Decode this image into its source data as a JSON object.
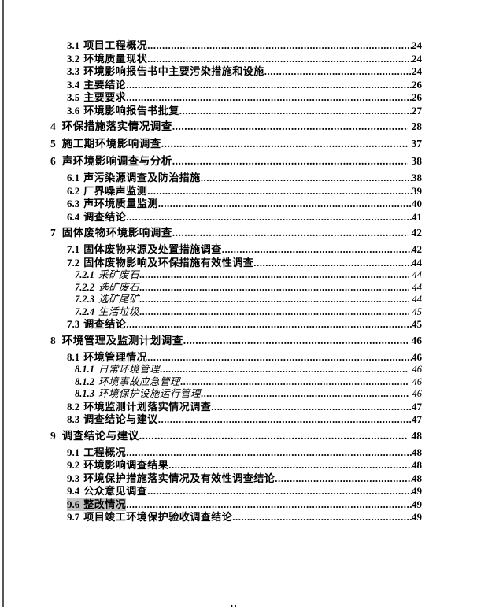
{
  "page": {
    "background_color": "#ffffff",
    "left_border_color": "#57575b",
    "highlight_color": "#c3c3c3",
    "footer_page_number": "II"
  },
  "toc": {
    "entries": [
      {
        "level": 2,
        "num": "3.1",
        "title": "项目工程概况",
        "page": "24"
      },
      {
        "level": 2,
        "num": "3.2",
        "title": "环境质量现状",
        "page": "24"
      },
      {
        "level": 2,
        "num": "3.3",
        "title": "环境影响报告书中主要污染措施和设施",
        "page": "24"
      },
      {
        "level": 2,
        "num": "3.4",
        "title": "主要结论",
        "page": "26"
      },
      {
        "level": 2,
        "num": "3.5",
        "title": "主要要求",
        "page": "26"
      },
      {
        "level": 2,
        "num": "3.6",
        "title": "环境影响报告书批复",
        "page": "27"
      },
      {
        "level": 1,
        "num": "4",
        "title": "环保措施落实情况调查",
        "page": "28"
      },
      {
        "level": 1,
        "num": "5",
        "title": "施工期环境影响调查",
        "page": "37"
      },
      {
        "level": 1,
        "num": "6",
        "title": "声环境影响调查与分析",
        "page": "38"
      },
      {
        "level": 2,
        "num": "6.1",
        "title": "声污染源调查及防治措施",
        "page": "38"
      },
      {
        "level": 2,
        "num": "6.2",
        "title": "厂界噪声监测",
        "page": "39"
      },
      {
        "level": 2,
        "num": "6.3",
        "title": "声环境质量监测",
        "page": "40"
      },
      {
        "level": 2,
        "num": "6.4",
        "title": "调查结论",
        "page": "41"
      },
      {
        "level": 1,
        "num": "7",
        "title": "固体废物环境影响调查",
        "page": "42"
      },
      {
        "level": 2,
        "num": "7.1",
        "title": "固体废物来源及处置措施调查",
        "page": "42"
      },
      {
        "level": 2,
        "num": "7.2",
        "title": "固体废物影响及环保措施有效性调查",
        "page": "44"
      },
      {
        "level": 3,
        "num": "7.2.1",
        "title": "采矿废石",
        "page": "44"
      },
      {
        "level": 3,
        "num": "7.2.2",
        "title": "选矿废石",
        "page": "44"
      },
      {
        "level": 3,
        "num": "7.2.3",
        "title": "选矿尾矿",
        "page": "44"
      },
      {
        "level": 3,
        "num": "7.2.4",
        "title": "生活垃圾",
        "page": "45"
      },
      {
        "level": 2,
        "num": "7.3",
        "title": "调查结论",
        "page": "45"
      },
      {
        "level": 1,
        "num": "8",
        "title": "环境管理及监测计划调查",
        "page": "46"
      },
      {
        "level": 2,
        "num": "8.1",
        "title": "环境管理情况",
        "page": "46"
      },
      {
        "level": 3,
        "num": "8.1.1",
        "title": "日常环境管理",
        "page": "46"
      },
      {
        "level": 3,
        "num": "8.1.2",
        "title": "环境事故应急管理",
        "page": "46"
      },
      {
        "level": 3,
        "num": "8.1.3",
        "title": "环境保护设施运行管理",
        "page": "46"
      },
      {
        "level": 2,
        "num": "8.2",
        "title": "环境监测计划落实情况调查",
        "page": "47"
      },
      {
        "level": 2,
        "num": "8.3",
        "title": "调查结论与建议",
        "page": "47"
      },
      {
        "level": 1,
        "num": "9",
        "title": "调查结论与建议",
        "page": "48"
      },
      {
        "level": 2,
        "num": "9.1",
        "title": "工程概况",
        "page": "48"
      },
      {
        "level": 2,
        "num": "9.2",
        "title": "环境影响调查结果",
        "page": "48"
      },
      {
        "level": 2,
        "num": "9.3",
        "title": "环境保护措施落实情况及有效性调查结论",
        "page": "48"
      },
      {
        "level": 2,
        "num": "9.4",
        "title": "公众意见调查",
        "page": "49"
      },
      {
        "level": 2,
        "num": "9.6",
        "title": "整改情况",
        "page": "49",
        "highlight": true
      },
      {
        "level": 2,
        "num": "9.7",
        "title": "项目竣工环境保护验收调查结论",
        "page": "49"
      }
    ]
  }
}
